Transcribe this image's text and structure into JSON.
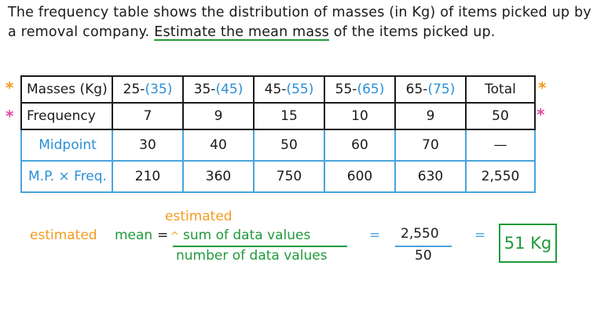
{
  "problem": {
    "text": "The frequency table shows the distribution of masses (in Kg) of items picked up by a removal company. ",
    "highlight": "Estimate the mean mass",
    "text_end": " of the items picked up."
  },
  "stars": {
    "orange": "*",
    "pink": "*"
  },
  "table": {
    "header": {
      "label": "Masses (Kg)",
      "classes": [
        {
          "lower": "25-",
          "upper": "(35)"
        },
        {
          "lower": "35-",
          "upper": "(45)"
        },
        {
          "lower": "45-",
          "upper": "(55)"
        },
        {
          "lower": "55-",
          "upper": "(65)"
        },
        {
          "lower": "65-",
          "upper": "(75)"
        }
      ],
      "total": "Total"
    },
    "frequency": {
      "label": "Frequency",
      "values": [
        "7",
        "9",
        "15",
        "10",
        "9"
      ],
      "total": "50"
    },
    "midpoint": {
      "label": "Midpoint",
      "values": [
        "30",
        "40",
        "50",
        "60",
        "70"
      ],
      "total": "—"
    },
    "product": {
      "label": "M.P. × Freq.",
      "values": [
        "210",
        "360",
        "750",
        "600",
        "630"
      ],
      "total": "2,550"
    }
  },
  "formula": {
    "estimated_left": "estimated",
    "mean": "mean",
    "equals": "=",
    "caret": "^",
    "estimated_top": "estimated",
    "numerator": "sum of data values",
    "denominator": "number of data values",
    "frac_num": "2,550",
    "frac_den": "50",
    "answer": "51 Kg"
  }
}
